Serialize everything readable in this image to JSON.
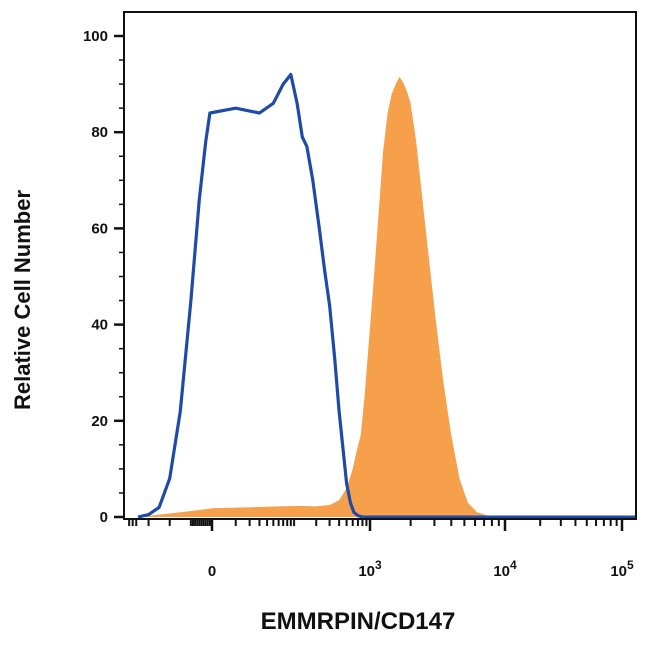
{
  "chart_data": {
    "type": "area",
    "xlabel": "EMMRPIN/CD147",
    "ylabel": "Relative Cell Number",
    "x_scale": "biexponential",
    "ylim": [
      0,
      100
    ],
    "yticks": [
      0,
      20,
      40,
      60,
      80,
      100
    ],
    "xticks": [
      {
        "value": 0,
        "label": "0",
        "exp": ""
      },
      {
        "value": 1000,
        "label": "10",
        "exp": "3"
      },
      {
        "value": 10000,
        "label": "10",
        "exp": "4"
      },
      {
        "value": 100000,
        "label": "10",
        "exp": "5"
      }
    ],
    "grid": false,
    "legend": "none",
    "series": [
      {
        "style": "filled",
        "color": "#f7a04b",
        "points": [
          [
            -350,
            0
          ],
          [
            -250,
            0.5
          ],
          [
            -150,
            1
          ],
          [
            -50,
            1.5
          ],
          [
            0,
            1.8
          ],
          [
            60,
            2.2
          ],
          [
            120,
            2.3
          ],
          [
            200,
            2.2
          ],
          [
            300,
            2.5
          ],
          [
            400,
            3.5
          ],
          [
            500,
            6
          ],
          [
            600,
            10
          ],
          [
            680,
            14
          ],
          [
            760,
            17
          ],
          [
            850,
            25
          ],
          [
            950,
            35
          ],
          [
            1050,
            47
          ],
          [
            1150,
            62
          ],
          [
            1250,
            76
          ],
          [
            1350,
            84
          ],
          [
            1450,
            88
          ],
          [
            1550,
            90
          ],
          [
            1650,
            91.5
          ],
          [
            1750,
            90.5
          ],
          [
            1850,
            89
          ],
          [
            2000,
            86
          ],
          [
            2200,
            78
          ],
          [
            2450,
            66
          ],
          [
            2750,
            53
          ],
          [
            3100,
            40
          ],
          [
            3500,
            28
          ],
          [
            4000,
            17
          ],
          [
            4600,
            8
          ],
          [
            5300,
            3
          ],
          [
            6200,
            1
          ],
          [
            7500,
            0.3
          ],
          [
            9000,
            0
          ]
        ]
      },
      {
        "style": "line",
        "color": "#1f4aa8",
        "points": [
          [
            -350,
            0
          ],
          [
            -300,
            0.5
          ],
          [
            -250,
            2
          ],
          [
            -200,
            8
          ],
          [
            -150,
            22
          ],
          [
            -100,
            45
          ],
          [
            -60,
            66
          ],
          [
            -30,
            78
          ],
          [
            -10,
            84
          ],
          [
            10,
            85
          ],
          [
            30,
            84
          ],
          [
            50,
            86
          ],
          [
            70,
            90
          ],
          [
            90,
            92
          ],
          [
            110,
            86
          ],
          [
            130,
            79
          ],
          [
            150,
            77
          ],
          [
            180,
            70
          ],
          [
            220,
            60
          ],
          [
            260,
            51
          ],
          [
            300,
            44
          ],
          [
            350,
            33
          ],
          [
            400,
            22
          ],
          [
            450,
            14
          ],
          [
            500,
            7
          ],
          [
            560,
            3
          ],
          [
            620,
            1
          ],
          [
            700,
            0.3
          ],
          [
            800,
            0
          ]
        ]
      }
    ]
  }
}
